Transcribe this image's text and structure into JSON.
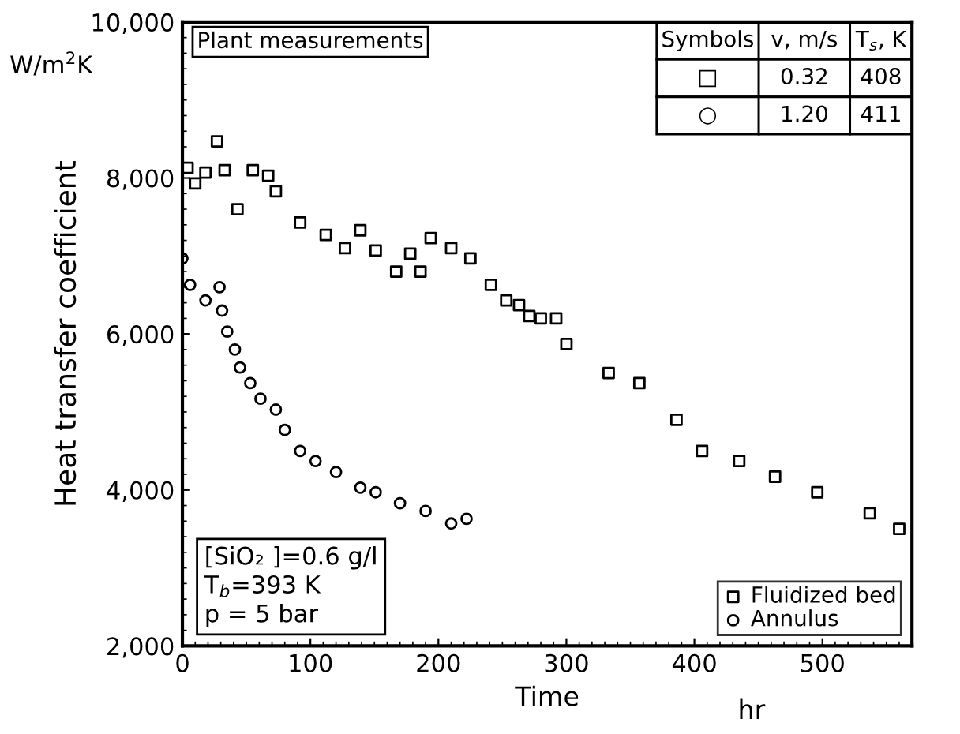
{
  "chart_data": {
    "type": "scatter",
    "xlabel": "Time",
    "ylabel": "Heat transfer coefficient",
    "xlim": [
      0,
      570
    ],
    "ylim": [
      2000,
      10000
    ],
    "xticks": [
      0,
      100,
      200,
      300,
      400,
      500
    ],
    "yticks": [
      {
        "value": 2000,
        "label": "2,000"
      },
      {
        "value": 4000,
        "label": "4,000"
      },
      {
        "value": 6000,
        "label": "6,000"
      },
      {
        "value": 8000,
        "label": "8,000"
      },
      {
        "value": 10000,
        "label": "10,000"
      }
    ],
    "grid": false,
    "legend": "bottom right",
    "annotations": [
      "Plant measurements",
      "[SiO₂ ]=0.6 g/l",
      "T$_{b}$=393 K",
      "p = 5 bar",
      "W/m$^{2}$K",
      "hr",
      "Symbols",
      "v, m/s",
      "T$_{s}$, K",
      "□",
      "0.32",
      "408",
      "○",
      "1.20",
      "411"
    ],
    "series": [
      {
        "name": "Fluidized bed",
        "color": "#000000",
        "marker": "square",
        "x": [
          4,
          10,
          18,
          27,
          33,
          43,
          55,
          67,
          73,
          92,
          112,
          127,
          139,
          151,
          167,
          178,
          186,
          194,
          210,
          225,
          241,
          253,
          263,
          271,
          280,
          292,
          300,
          333,
          357,
          386,
          406,
          435,
          463,
          496,
          537,
          560
        ],
        "values": [
          8130,
          7930,
          8070,
          8470,
          8100,
          7600,
          8100,
          8030,
          7830,
          7430,
          7270,
          7100,
          7330,
          7070,
          6800,
          7030,
          6800,
          7230,
          7100,
          6970,
          6630,
          6430,
          6370,
          6230,
          6200,
          6200,
          5870,
          5500,
          5370,
          4900,
          4500,
          4370,
          4170,
          3970,
          3700,
          3500
        ]
      },
      {
        "name": "Annulus",
        "color": "#000000",
        "marker": "circle",
        "x": [
          0,
          6,
          18,
          29,
          31,
          35,
          41,
          45,
          53,
          61,
          73,
          80,
          92,
          104,
          120,
          139,
          151,
          170,
          190,
          210,
          222
        ],
        "values": [
          6970,
          6630,
          6430,
          6600,
          6300,
          6030,
          5800,
          5570,
          5370,
          5170,
          5030,
          4770,
          4500,
          4370,
          4230,
          4030,
          3970,
          3830,
          3730,
          3570,
          3630
        ]
      }
    ]
  }
}
